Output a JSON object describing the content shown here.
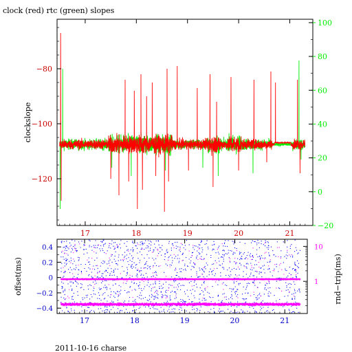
{
  "title": "clock (red) rtc (green) slopes",
  "footer": "2011-10-16 charse",
  "colors": {
    "clock": "#ff0000",
    "rtc": "#00ee00",
    "offset": "#0000ff",
    "rtt": "#ff00ff",
    "frame": "#000000"
  },
  "chart_data": [
    {
      "type": "line",
      "title": "clock (red) rtc (green) slopes",
      "ylabel": "clockslope",
      "y2label": "",
      "xlim": [
        16.45,
        21.45
      ],
      "ylim": [
        -137,
        -62
      ],
      "y2lim": [
        -20,
        102
      ],
      "x_ticks": [
        17,
        18,
        19,
        20,
        21
      ],
      "x_tick_labels": [
        "17",
        "18",
        "19",
        "20",
        "21"
      ],
      "y_ticks": [
        -120,
        -100,
        -80
      ],
      "y_tick_labels": [
        "−120",
        "−100",
        "−80"
      ],
      "y2_ticks": [
        -20,
        0,
        20,
        40,
        60,
        80,
        100
      ],
      "y2_tick_labels": [
        "−20",
        "0",
        "20",
        "40",
        "60",
        "80",
        "100"
      ],
      "x_start": 16.5,
      "x_end": 21.3,
      "series": [
        {
          "name": "clock",
          "color": "#ff0000",
          "baseline": -107.5,
          "typical_range": [
            -102,
            -113
          ],
          "spikes": [
            [
              16.52,
              -67
            ],
            [
              16.53,
              -128
            ],
            [
              17.5,
              -120
            ],
            [
              17.66,
              -126
            ],
            [
              17.78,
              -84
            ],
            [
              17.85,
              -121
            ],
            [
              17.96,
              -88
            ],
            [
              18.02,
              -131
            ],
            [
              18.09,
              -82
            ],
            [
              18.12,
              -124
            ],
            [
              18.2,
              -90
            ],
            [
              18.31,
              -85
            ],
            [
              18.38,
              -119
            ],
            [
              18.55,
              -132
            ],
            [
              18.6,
              -80
            ],
            [
              18.63,
              -121
            ],
            [
              18.8,
              -79
            ],
            [
              19.02,
              -117
            ],
            [
              19.19,
              -87
            ],
            [
              19.44,
              -82
            ],
            [
              19.5,
              -123
            ],
            [
              19.57,
              -92
            ],
            [
              19.85,
              -83
            ],
            [
              20.0,
              -117
            ],
            [
              20.3,
              -84
            ],
            [
              20.55,
              -114
            ],
            [
              20.63,
              -81
            ],
            [
              20.72,
              -85
            ],
            [
              20.9,
              -103
            ],
            [
              21.06,
              -108
            ],
            [
              21.15,
              -84
            ],
            [
              21.2,
              -118
            ]
          ]
        },
        {
          "name": "rtc",
          "color": "#00ee00",
          "baseline": -107.5,
          "typical_range": [
            -101,
            -114
          ],
          "spikes": [
            [
              16.51,
              -131
            ],
            [
              16.56,
              -80
            ],
            [
              17.52,
              -116
            ],
            [
              17.9,
              -119
            ],
            [
              18.57,
              -117
            ],
            [
              19.3,
              -116
            ],
            [
              19.6,
              -119
            ],
            [
              20.28,
              -118
            ],
            [
              21.18,
              -77
            ],
            [
              21.22,
              -113
            ]
          ]
        }
      ]
    },
    {
      "type": "scatter",
      "ylabel": "offset(ms)",
      "y2label": "rnd−trip(ms)",
      "y2scale": "log",
      "xlim": [
        16.45,
        21.45
      ],
      "ylim": [
        -0.47,
        0.5
      ],
      "y2lim": [
        0.12,
        16
      ],
      "x_ticks": [
        17,
        18,
        19,
        20,
        21
      ],
      "x_tick_labels": [
        "17",
        "18",
        "19",
        "20",
        "21"
      ],
      "y_ticks": [
        -0.4,
        -0.2,
        0.0,
        0.2,
        0.4
      ],
      "y_tick_labels": [
        "−0.4",
        "−0.2",
        "0",
        "0.2",
        "0.4"
      ],
      "y2_ticks": [
        1,
        10
      ],
      "y2_tick_labels": [
        "1",
        "10"
      ],
      "series": [
        {
          "name": "offset",
          "color": "#0000ff",
          "values_range": [
            -0.46,
            0.48
          ]
        },
        {
          "name": "rnd-trip",
          "color": "#ff00ff",
          "lower_band_ms": 0.22,
          "upper_band_ms": 1.15
        }
      ]
    }
  ]
}
